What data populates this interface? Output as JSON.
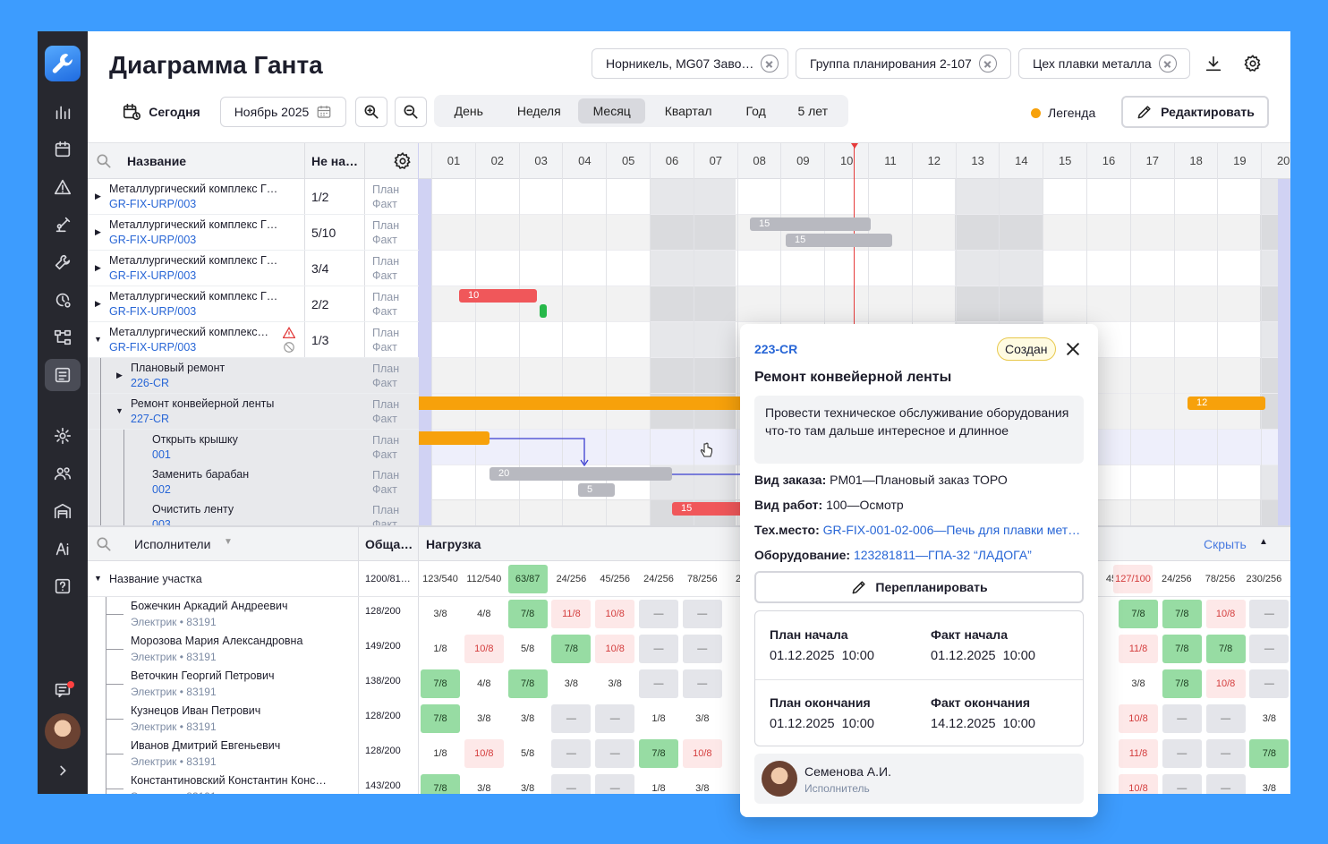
{
  "page": {
    "title": "Диаграмма Ганта"
  },
  "filters": [
    {
      "label": "Норникель, MG07 Заво…"
    },
    {
      "label": "Группа планирования 2-107"
    },
    {
      "label": "Цех плавки металла"
    }
  ],
  "toolbar": {
    "today": "Сегодня",
    "month_picker": "Ноябрь 2025",
    "scales": [
      "День",
      "Неделя",
      "Месяц",
      "Квартал",
      "Год",
      "5 лет"
    ],
    "active_scale": "Месяц",
    "legend": "Легенда",
    "edit": "Редактировать"
  },
  "tree": {
    "col_name": "Название",
    "col_ratio": "Не на…",
    "plan": "План",
    "fact": "Факт",
    "rows": [
      {
        "name": "Металлургический комплекс Г…",
        "code": "GR-FIX-URP/003",
        "ratio": "1/2"
      },
      {
        "name": "Металлургический комплекс Г…",
        "code": "GR-FIX-URP/003",
        "ratio": "5/10"
      },
      {
        "name": "Металлургический комплекс Г…",
        "code": "GR-FIX-URP/003",
        "ratio": "3/4"
      },
      {
        "name": "Металлургический комплекс Г…",
        "code": "GR-FIX-URP/003",
        "ratio": "2/2"
      },
      {
        "name": "Металлургический комплекс…",
        "code": "GR-FIX-URP/003",
        "ratio": "1/3"
      },
      {
        "name": "Плановый ремонт",
        "code": "226-CR",
        "ratio": ""
      },
      {
        "name": "Ремонт конвейерной ленты",
        "code": "227-CR",
        "ratio": ""
      },
      {
        "name": "Открыть крышку",
        "code": "001",
        "ratio": ""
      },
      {
        "name": "Заменить барабан",
        "code": "002",
        "ratio": ""
      },
      {
        "name": "Очистить ленту",
        "code": "003",
        "ratio": ""
      }
    ]
  },
  "gantt": {
    "days": [
      "01",
      "02",
      "03",
      "04",
      "05",
      "06",
      "07",
      "08",
      "09",
      "10",
      "11",
      "12",
      "13",
      "14",
      "15",
      "16",
      "17",
      "18",
      "19",
      "20"
    ],
    "bars": [
      "15",
      "15",
      "10",
      "12",
      "20",
      "5",
      "15"
    ]
  },
  "workload": {
    "search_label": "Исполнители",
    "col_total": "Обща…",
    "col_load": "Нагрузка",
    "hide": "Скрыть",
    "section": "Название участка",
    "section_total": "1200/81…",
    "section_cells": [
      "123/540",
      "112/540",
      "63/87",
      "24/256",
      "45/256",
      "24/256",
      "78/256",
      "23…"
    ],
    "section_cells_right": [
      "45",
      "127/100",
      "24/256",
      "78/256",
      "230/256"
    ],
    "people": [
      {
        "name": "Божечкин Аркадий Андреевич",
        "role": "Электрик • 83191",
        "total": "128/200",
        "cells": [
          "3/8",
          "4/8",
          "7/8",
          "11/8",
          "10/8",
          "—",
          "—"
        ],
        "right": [
          "7/8",
          "7/8",
          "10/8",
          "—"
        ]
      },
      {
        "name": "Морозова Мария Александровна",
        "role": "Электрик • 83191",
        "total": "149/200",
        "cells": [
          "1/8",
          "10/8",
          "5/8",
          "7/8",
          "10/8",
          "—",
          "—"
        ],
        "right": [
          "11/8",
          "7/8",
          "7/8",
          "—"
        ]
      },
      {
        "name": "Веточкин Георгий Петрович",
        "role": "Электрик • 83191",
        "total": "138/200",
        "cells": [
          "7/8",
          "4/8",
          "7/8",
          "3/8",
          "3/8",
          "—",
          "—"
        ],
        "right": [
          "3/8",
          "7/8",
          "10/8",
          "—"
        ]
      },
      {
        "name": "Кузнецов Иван Петрович",
        "role": "Электрик • 83191",
        "total": "128/200",
        "cells": [
          "7/8",
          "3/8",
          "3/8",
          "—",
          "—",
          "1/8",
          "3/8"
        ],
        "right": [
          "10/8",
          "—",
          "—",
          "3/8"
        ]
      },
      {
        "name": "Иванов Дмитрий Евгеньевич",
        "role": "Электрик • 83191",
        "total": "128/200",
        "cells": [
          "1/8",
          "10/8",
          "5/8",
          "—",
          "—",
          "7/8",
          "10/8"
        ],
        "right": [
          "11/8",
          "—",
          "—",
          "7/8"
        ]
      },
      {
        "name": "Константиновский Константин Конс…",
        "role": "Электрик • 83191",
        "total": "143/200",
        "cells": [
          "7/8",
          "3/8",
          "3/8",
          "—",
          "—",
          "1/8",
          "3/8"
        ],
        "right": [
          "10/8",
          "—",
          "—",
          "3/8"
        ]
      }
    ]
  },
  "popup": {
    "code": "223-CR",
    "status": "Создан",
    "title": "Ремонт конвейерной ленты",
    "description": "Провести техническое обслуживание оборудования что-то там дальше интересное и длинное",
    "order_type_label": "Вид заказа:",
    "order_type": "PM01—Плановый заказ ТОРО",
    "work_type_label": "Вид работ:",
    "work_type": "100—Осмотр",
    "tech_place_label": "Тех.место:",
    "tech_place": "GR-FIX-001-02-006—Печь для плавки мет…",
    "equipment_label": "Оборудование:",
    "equipment": "123281811—ГПА-32 “ЛАДОГА”",
    "replan": "Перепланировать",
    "plan_start_label": "План начала",
    "plan_start": "01.12.2025  10:00",
    "fact_start_label": "Факт начала",
    "fact_start": "01.12.2025  10:00",
    "plan_end_label": "План окончания",
    "plan_end": "01.12.2025  10:00",
    "fact_end_label": "Факт окончания",
    "fact_end": "14.12.2025  10:00",
    "assignee": "Семенова А.И.",
    "assignee_role": "Исполнитель"
  }
}
